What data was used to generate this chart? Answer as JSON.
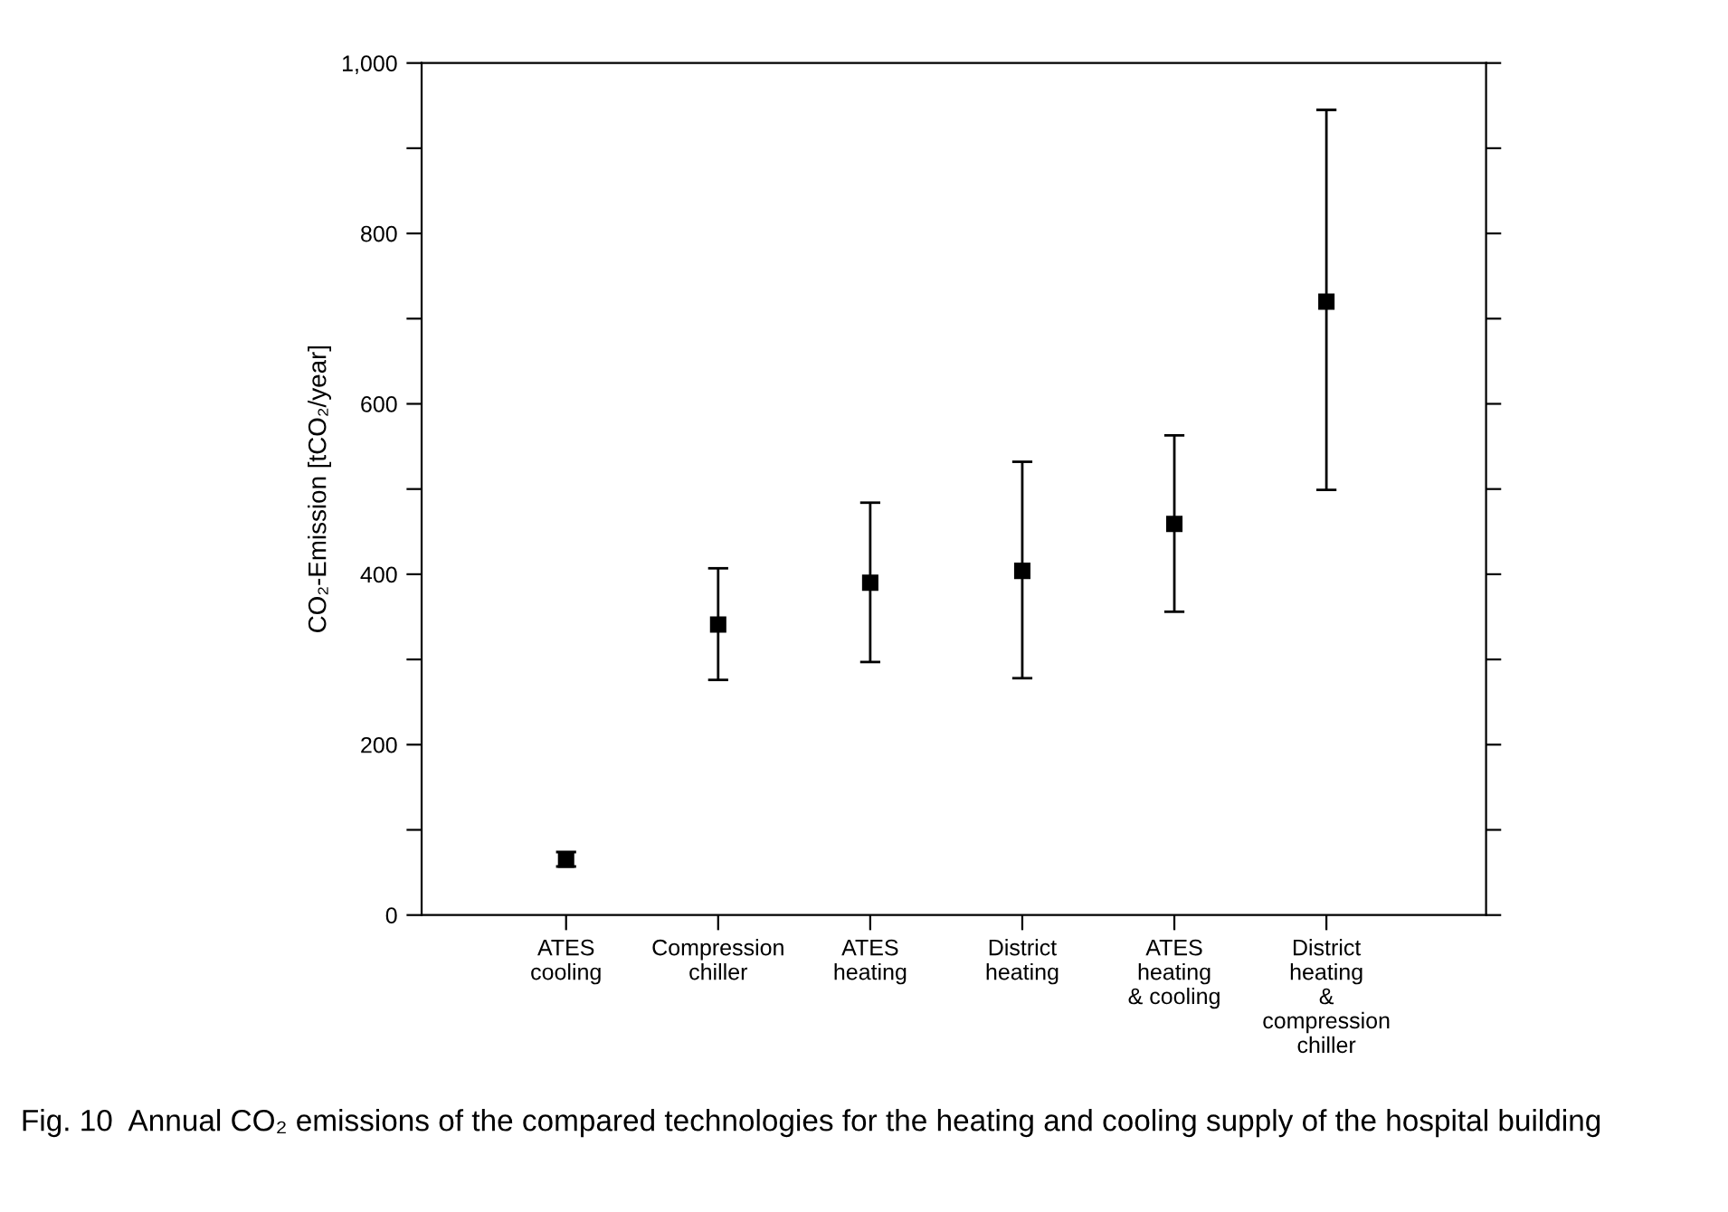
{
  "chart_data": {
    "type": "scatter",
    "ylabel": "CO₂-Emission [tCO₂/year]",
    "categories": [
      "ATES\ncooling",
      "Compression\nchiller",
      "ATES\nheating",
      "District\nheating",
      "ATES\nheating\n& cooling",
      "District\nheating\n&\ncompression\nchiller"
    ],
    "series": [
      {
        "color": "#000000",
        "values": [
          65,
          341,
          390,
          404,
          459,
          720
        ],
        "errors": [
          [
            57,
            74
          ],
          [
            276,
            407
          ],
          [
            297,
            484
          ],
          [
            278,
            532
          ],
          [
            356,
            563
          ],
          [
            499,
            945
          ]
        ]
      }
    ],
    "marker": "square",
    "ylim": [
      0,
      1000
    ],
    "yticks": [
      0,
      {
        "value": 100,
        "label": null
      },
      200,
      {
        "value": 300,
        "label": null
      },
      400,
      {
        "value": 500,
        "label": null
      },
      600,
      {
        "value": 700,
        "label": null
      },
      800,
      {
        "value": 900,
        "label": null
      },
      {
        "value": 1000,
        "label": "1,000"
      }
    ],
    "grid": false,
    "legend": false,
    "annotations": [
      "Fig. 10  Annual CO₂ emissions of the compared technologies for the heating and cooling supply of the hospital building"
    ]
  }
}
